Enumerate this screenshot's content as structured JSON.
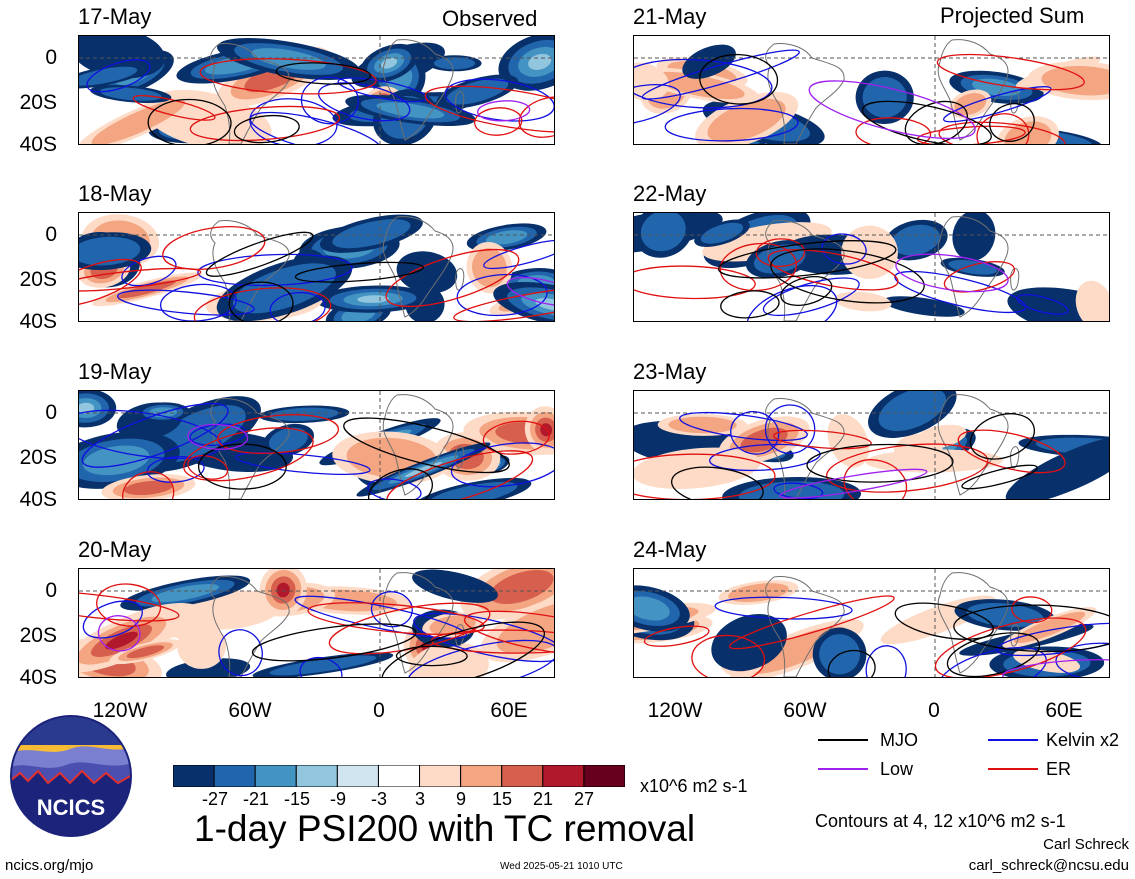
{
  "columns": {
    "left": "Observed",
    "right": "Projected Sum"
  },
  "panels": {
    "left": [
      "17-May",
      "18-May",
      "19-May",
      "20-May"
    ],
    "right": [
      "21-May",
      "22-May",
      "23-May",
      "24-May"
    ]
  },
  "lat_labels": [
    "0",
    "20S",
    "40S"
  ],
  "lon_labels": [
    "120W",
    "60W",
    "0",
    "60E"
  ],
  "legend": {
    "mjo": {
      "label": "MJO",
      "color": "#000000"
    },
    "kelvin": {
      "label": "Kelvin x2",
      "color": "#1010e0"
    },
    "low": {
      "label": "Low",
      "color": "#a020f0"
    },
    "er": {
      "label": "ER",
      "color": "#e01010"
    }
  },
  "colorbar": {
    "colors": [
      "#08306b",
      "#2166ac",
      "#4393c3",
      "#92c5de",
      "#d1e5f0",
      "#ffffff",
      "#fddbc7",
      "#f4a582",
      "#d6604d",
      "#b2182b",
      "#67001f"
    ],
    "labels": [
      "-27",
      "-21",
      "-15",
      "-9",
      "-3",
      "3",
      "9",
      "15",
      "21",
      "27"
    ],
    "units": "x10^6 m2 s-1"
  },
  "title": "1-day PSI200 with TC removal",
  "contours_note": "Contours at 4, 12 x10^6 m2 s-1",
  "author": "Carl Schreck",
  "email": "carl_schreck@ncsu.edu",
  "website": "ncics.org/mjo",
  "timestamp": "Wed 2025-05-21 1010 UTC",
  "logo_text": "NCICS"
}
